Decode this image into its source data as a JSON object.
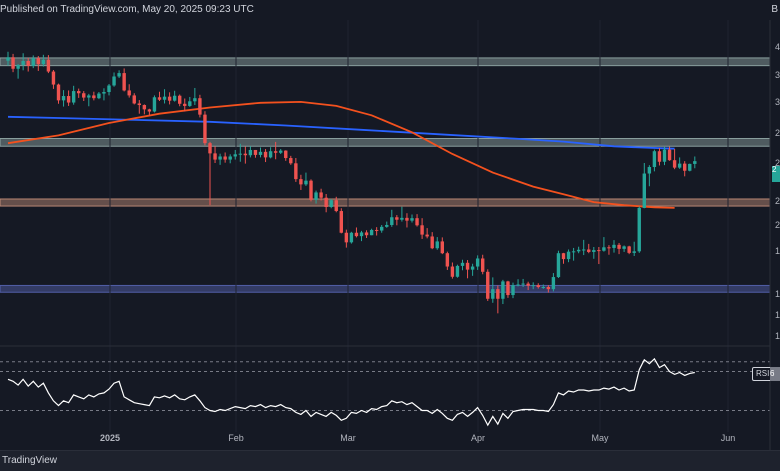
{
  "header": {
    "published": "Published on TradingView.com, May 20, 2025 09:23 UTC",
    "corner_label": "B"
  },
  "footer": {
    "brand": "TradingView"
  },
  "colors": {
    "background": "#151924",
    "up": "#26a69a",
    "down": "#ef5350",
    "ma_slow": "#2962ff",
    "ma_fast": "#f4511e",
    "rsi_line": "#ffffff",
    "zone_grey": "#9fb7b4",
    "zone_brown": "#d49a82",
    "zone_blue": "#5c6bc0"
  },
  "chart_data": {
    "type": "candlestick",
    "title": "",
    "x_ticks": [
      "2025",
      "Feb",
      "Mar",
      "Apr",
      "May",
      "Jun"
    ],
    "y_ticks_partial": [
      "4",
      "3",
      "3",
      "2",
      "2",
      "2",
      "2",
      "1",
      "1",
      "1",
      "1"
    ],
    "ylim": [
      0,
      100
    ],
    "horizontal_zones": [
      {
        "name": "upper-resistance",
        "low": 88.5,
        "high": 91.0,
        "color": "grey"
      },
      {
        "name": "mid-resistance",
        "low": 62.5,
        "high": 65.0,
        "color": "grey"
      },
      {
        "name": "support",
        "low": 43.2,
        "high": 45.5,
        "color": "brown"
      },
      {
        "name": "lower-support",
        "low": 15.4,
        "high": 17.6,
        "color": "blue"
      }
    ],
    "candles": [
      [
        90.1,
        93.0,
        88.5,
        91.2
      ],
      [
        91.2,
        92.3,
        86.4,
        87.5
      ],
      [
        87.5,
        89.0,
        84.3,
        88.7
      ],
      [
        88.7,
        92.5,
        87.0,
        90.0
      ],
      [
        90.0,
        91.0,
        86.6,
        88.4
      ],
      [
        88.4,
        91.8,
        87.7,
        90.9
      ],
      [
        90.9,
        91.6,
        86.8,
        89.0
      ],
      [
        89.0,
        92.0,
        88.2,
        90.4
      ],
      [
        90.4,
        91.9,
        86.1,
        86.6
      ],
      [
        86.6,
        87.1,
        81.0,
        82.4
      ],
      [
        82.4,
        82.7,
        76.2,
        77.3
      ],
      [
        77.3,
        80.6,
        75.3,
        78.7
      ],
      [
        78.7,
        80.5,
        75.5,
        76.6
      ],
      [
        76.6,
        82.0,
        75.9,
        80.3
      ],
      [
        80.3,
        81.1,
        78.1,
        79.6
      ],
      [
        79.6,
        80.3,
        77.1,
        78.2
      ],
      [
        78.2,
        79.4,
        75.4,
        78.9
      ],
      [
        78.9,
        80.1,
        77.3,
        78.0
      ],
      [
        78.0,
        80.0,
        77.7,
        79.5
      ],
      [
        79.5,
        81.2,
        77.3,
        80.0
      ],
      [
        80.0,
        82.6,
        78.9,
        82.1
      ],
      [
        82.1,
        86.3,
        81.7,
        85.0
      ],
      [
        85.0,
        87.0,
        84.5,
        86.1
      ],
      [
        86.1,
        87.6,
        80.2,
        80.5
      ],
      [
        80.5,
        82.5,
        78.2,
        78.9
      ],
      [
        78.9,
        79.6,
        76.0,
        76.3
      ],
      [
        76.3,
        77.4,
        73.0,
        75.8
      ],
      [
        75.8,
        76.0,
        72.8,
        74.4
      ],
      [
        74.4,
        74.6,
        72.4,
        73.7
      ],
      [
        73.7,
        78.9,
        73.4,
        78.3
      ],
      [
        78.3,
        80.1,
        77.1,
        77.5
      ],
      [
        77.5,
        80.9,
        76.3,
        78.5
      ],
      [
        78.5,
        79.9,
        76.0,
        77.2
      ],
      [
        77.2,
        80.4,
        76.9,
        78.8
      ],
      [
        78.8,
        79.2,
        75.4,
        76.2
      ],
      [
        76.2,
        77.9,
        73.7,
        75.5
      ],
      [
        75.5,
        78.4,
        75.2,
        77.0
      ],
      [
        77.0,
        81.3,
        75.8,
        78.0
      ],
      [
        78.0,
        79.1,
        71.8,
        72.7
      ],
      [
        72.7,
        73.8,
        62.8,
        63.5
      ],
      [
        63.5,
        63.9,
        43.5,
        60.2
      ],
      [
        60.2,
        62.5,
        57.1,
        58.2
      ],
      [
        58.2,
        60.1,
        56.5,
        59.2
      ],
      [
        59.2,
        60.5,
        57.2,
        58.2
      ],
      [
        58.2,
        59.9,
        57.0,
        59.2
      ],
      [
        59.2,
        61.3,
        58.2,
        59.9
      ],
      [
        59.9,
        63.3,
        57.5,
        60.1
      ],
      [
        60.1,
        62.4,
        56.9,
        59.6
      ],
      [
        59.6,
        62.5,
        58.9,
        61.3
      ],
      [
        61.3,
        61.3,
        58.8,
        59.7
      ],
      [
        59.7,
        62.1,
        58.9,
        60.7
      ],
      [
        60.7,
        61.6,
        57.4,
        58.9
      ],
      [
        58.9,
        62.2,
        58.6,
        60.9
      ],
      [
        60.9,
        63.9,
        58.3,
        60.4
      ],
      [
        60.4,
        61.6,
        60.0,
        61.1
      ],
      [
        61.1,
        61.2,
        57.8,
        58.7
      ],
      [
        58.7,
        59.4,
        56.5,
        57.0
      ],
      [
        57.0,
        58.7,
        51.0,
        51.9
      ],
      [
        51.9,
        53.3,
        48.4,
        50.2
      ],
      [
        50.2,
        54.0,
        49.7,
        51.4
      ],
      [
        51.4,
        51.8,
        44.7,
        45.2
      ],
      [
        45.2,
        48.2,
        44.0,
        47.6
      ],
      [
        47.6,
        48.8,
        45.0,
        45.9
      ],
      [
        45.9,
        47.1,
        41.2,
        42.9
      ],
      [
        42.9,
        45.5,
        42.5,
        45.1
      ],
      [
        45.1,
        46.2,
        41.2,
        41.6
      ],
      [
        41.6,
        42.5,
        34.4,
        34.6
      ],
      [
        34.6,
        35.6,
        29.8,
        31.5
      ],
      [
        31.5,
        34.9,
        31.1,
        34.6
      ],
      [
        34.6,
        36.3,
        33.1,
        33.5
      ],
      [
        33.5,
        35.2,
        31.9,
        34.7
      ],
      [
        34.7,
        35.4,
        32.9,
        33.8
      ],
      [
        33.8,
        35.9,
        33.8,
        35.5
      ],
      [
        35.5,
        36.4,
        33.7,
        35.3
      ],
      [
        35.3,
        37.1,
        34.6,
        36.5
      ],
      [
        36.5,
        38.2,
        36.2,
        37.1
      ],
      [
        37.1,
        42.0,
        36.5,
        39.6
      ],
      [
        39.6,
        40.3,
        37.0,
        38.8
      ],
      [
        38.8,
        43.0,
        38.2,
        39.4
      ],
      [
        39.4,
        40.9,
        36.3,
        38.5
      ],
      [
        38.5,
        40.5,
        37.9,
        39.3
      ],
      [
        39.3,
        40.6,
        36.6,
        37.0
      ],
      [
        37.0,
        39.3,
        32.6,
        34.0
      ],
      [
        34.0,
        36.1,
        32.8,
        33.4
      ],
      [
        33.4,
        34.8,
        29.3,
        29.6
      ],
      [
        29.6,
        33.2,
        29.1,
        31.8
      ],
      [
        31.8,
        33.1,
        27.7,
        28.0
      ],
      [
        28.0,
        28.5,
        22.6,
        23.7
      ],
      [
        23.7,
        25.0,
        19.8,
        20.4
      ],
      [
        20.4,
        24.3,
        20.1,
        23.9
      ],
      [
        23.9,
        25.9,
        22.5,
        24.9
      ],
      [
        24.9,
        25.8,
        19.9,
        22.7
      ],
      [
        22.7,
        24.6,
        20.7,
        23.7
      ],
      [
        23.7,
        27.3,
        22.6,
        26.3
      ],
      [
        26.3,
        27.5,
        21.2,
        22.0
      ],
      [
        22.0,
        22.8,
        12.6,
        13.3
      ],
      [
        13.3,
        20.2,
        12.0,
        16.4
      ],
      [
        16.4,
        17.6,
        8.6,
        13.3
      ],
      [
        13.3,
        19.4,
        11.6,
        18.9
      ],
      [
        18.9,
        19.1,
        13.6,
        14.5
      ],
      [
        14.5,
        18.5,
        13.5,
        17.7
      ],
      [
        17.7,
        19.6,
        17.3,
        17.9
      ],
      [
        17.9,
        19.7,
        17.1,
        18.2
      ],
      [
        18.2,
        18.8,
        16.1,
        17.5
      ],
      [
        17.5,
        18.6,
        16.4,
        17.7
      ],
      [
        17.7,
        18.3,
        16.6,
        17.1
      ],
      [
        17.1,
        17.9,
        16.5,
        17.1
      ],
      [
        17.1,
        17.7,
        15.3,
        16.4
      ],
      [
        16.4,
        21.6,
        15.7,
        20.3
      ],
      [
        20.3,
        28.8,
        20.0,
        28.0
      ],
      [
        28.0,
        28.1,
        24.6,
        26.1
      ],
      [
        26.1,
        29.2,
        25.1,
        28.5
      ],
      [
        28.5,
        29.7,
        25.6,
        28.6
      ],
      [
        28.6,
        30.1,
        28.0,
        29.1
      ],
      [
        29.1,
        32.3,
        27.4,
        29.2
      ],
      [
        29.2,
        31.0,
        28.0,
        28.4
      ],
      [
        28.4,
        30.0,
        26.2,
        29.0
      ],
      [
        29.0,
        30.0,
        24.5,
        28.8
      ],
      [
        28.8,
        33.2,
        28.5,
        29.9
      ],
      [
        29.9,
        30.6,
        27.5,
        29.7
      ],
      [
        29.7,
        32.2,
        28.2,
        30.7
      ],
      [
        30.7,
        31.3,
        27.7,
        29.4
      ],
      [
        29.4,
        30.5,
        28.4,
        30.2
      ],
      [
        30.2,
        30.4,
        27.7,
        28.1
      ],
      [
        28.1,
        31.7,
        27.1,
        28.6
      ],
      [
        28.6,
        43.1,
        28.1,
        42.6
      ],
      [
        42.6,
        57.1,
        42.5,
        53.7
      ],
      [
        53.7,
        56.4,
        49.6,
        55.8
      ],
      [
        55.8,
        61.4,
        54.4,
        60.9
      ],
      [
        60.9,
        61.9,
        56.3,
        57.5
      ],
      [
        57.5,
        62.3,
        56.4,
        61.4
      ],
      [
        61.4,
        62.4,
        57.8,
        58.0
      ],
      [
        58.0,
        61.6,
        55.1,
        55.6
      ],
      [
        55.6,
        58.9,
        55.2,
        56.9
      ],
      [
        56.9,
        57.7,
        52.8,
        54.6
      ],
      [
        54.6,
        56.9,
        54.4,
        56.8
      ],
      [
        56.8,
        59.2,
        55.4,
        57.7
      ]
    ],
    "ma_slow": [
      [
        0,
        72.0
      ],
      [
        10,
        71.6
      ],
      [
        25,
        71.0
      ],
      [
        40,
        70.4
      ],
      [
        55,
        69.2
      ],
      [
        70,
        67.8
      ],
      [
        85,
        66.4
      ],
      [
        100,
        65.0
      ],
      [
        110,
        64.0
      ],
      [
        120,
        62.5
      ],
      [
        124,
        62.2
      ],
      [
        132,
        61.7
      ]
    ],
    "ma_fast": [
      [
        0,
        63.5
      ],
      [
        10,
        66.0
      ],
      [
        20,
        70.0
      ],
      [
        30,
        73.0
      ],
      [
        40,
        75.0
      ],
      [
        50,
        76.5
      ],
      [
        58,
        76.8
      ],
      [
        65,
        75.5
      ],
      [
        72,
        72.5
      ],
      [
        80,
        67.0
      ],
      [
        88,
        60.0
      ],
      [
        96,
        54.0
      ],
      [
        104,
        49.5
      ],
      [
        110,
        47.0
      ],
      [
        116,
        44.5
      ],
      [
        122,
        43.5
      ],
      [
        128,
        42.8
      ],
      [
        132,
        42.6
      ]
    ],
    "rsi": {
      "label": "RSI",
      "value_label": "6",
      "levels": [
        80,
        70,
        30
      ],
      "values": [
        62,
        60,
        56,
        62,
        55,
        60,
        54,
        58,
        48,
        40,
        35,
        40,
        38,
        46,
        44,
        42,
        46,
        44,
        47,
        48,
        52,
        58,
        60,
        44,
        41,
        38,
        37,
        36,
        35,
        44,
        43,
        45,
        43,
        46,
        42,
        41,
        44,
        46,
        40,
        33,
        30,
        29,
        31,
        30,
        32,
        34,
        33,
        32,
        35,
        34,
        36,
        33,
        35,
        34,
        36,
        33,
        32,
        28,
        26,
        30,
        24,
        28,
        26,
        24,
        28,
        25,
        20,
        22,
        28,
        27,
        30,
        28,
        32,
        31,
        34,
        35,
        40,
        38,
        39,
        36,
        38,
        34,
        30,
        30,
        27,
        31,
        27,
        22,
        20,
        26,
        28,
        24,
        28,
        33,
        25,
        15,
        24,
        16,
        27,
        22,
        29,
        30,
        31,
        31,
        31,
        30,
        30,
        29,
        36,
        48,
        46,
        50,
        49,
        51,
        51,
        50,
        51,
        51,
        53,
        52,
        54,
        51,
        53,
        50,
        51,
        72,
        82,
        78,
        83,
        74,
        77,
        70,
        67,
        69,
        66,
        68,
        69
      ]
    }
  }
}
